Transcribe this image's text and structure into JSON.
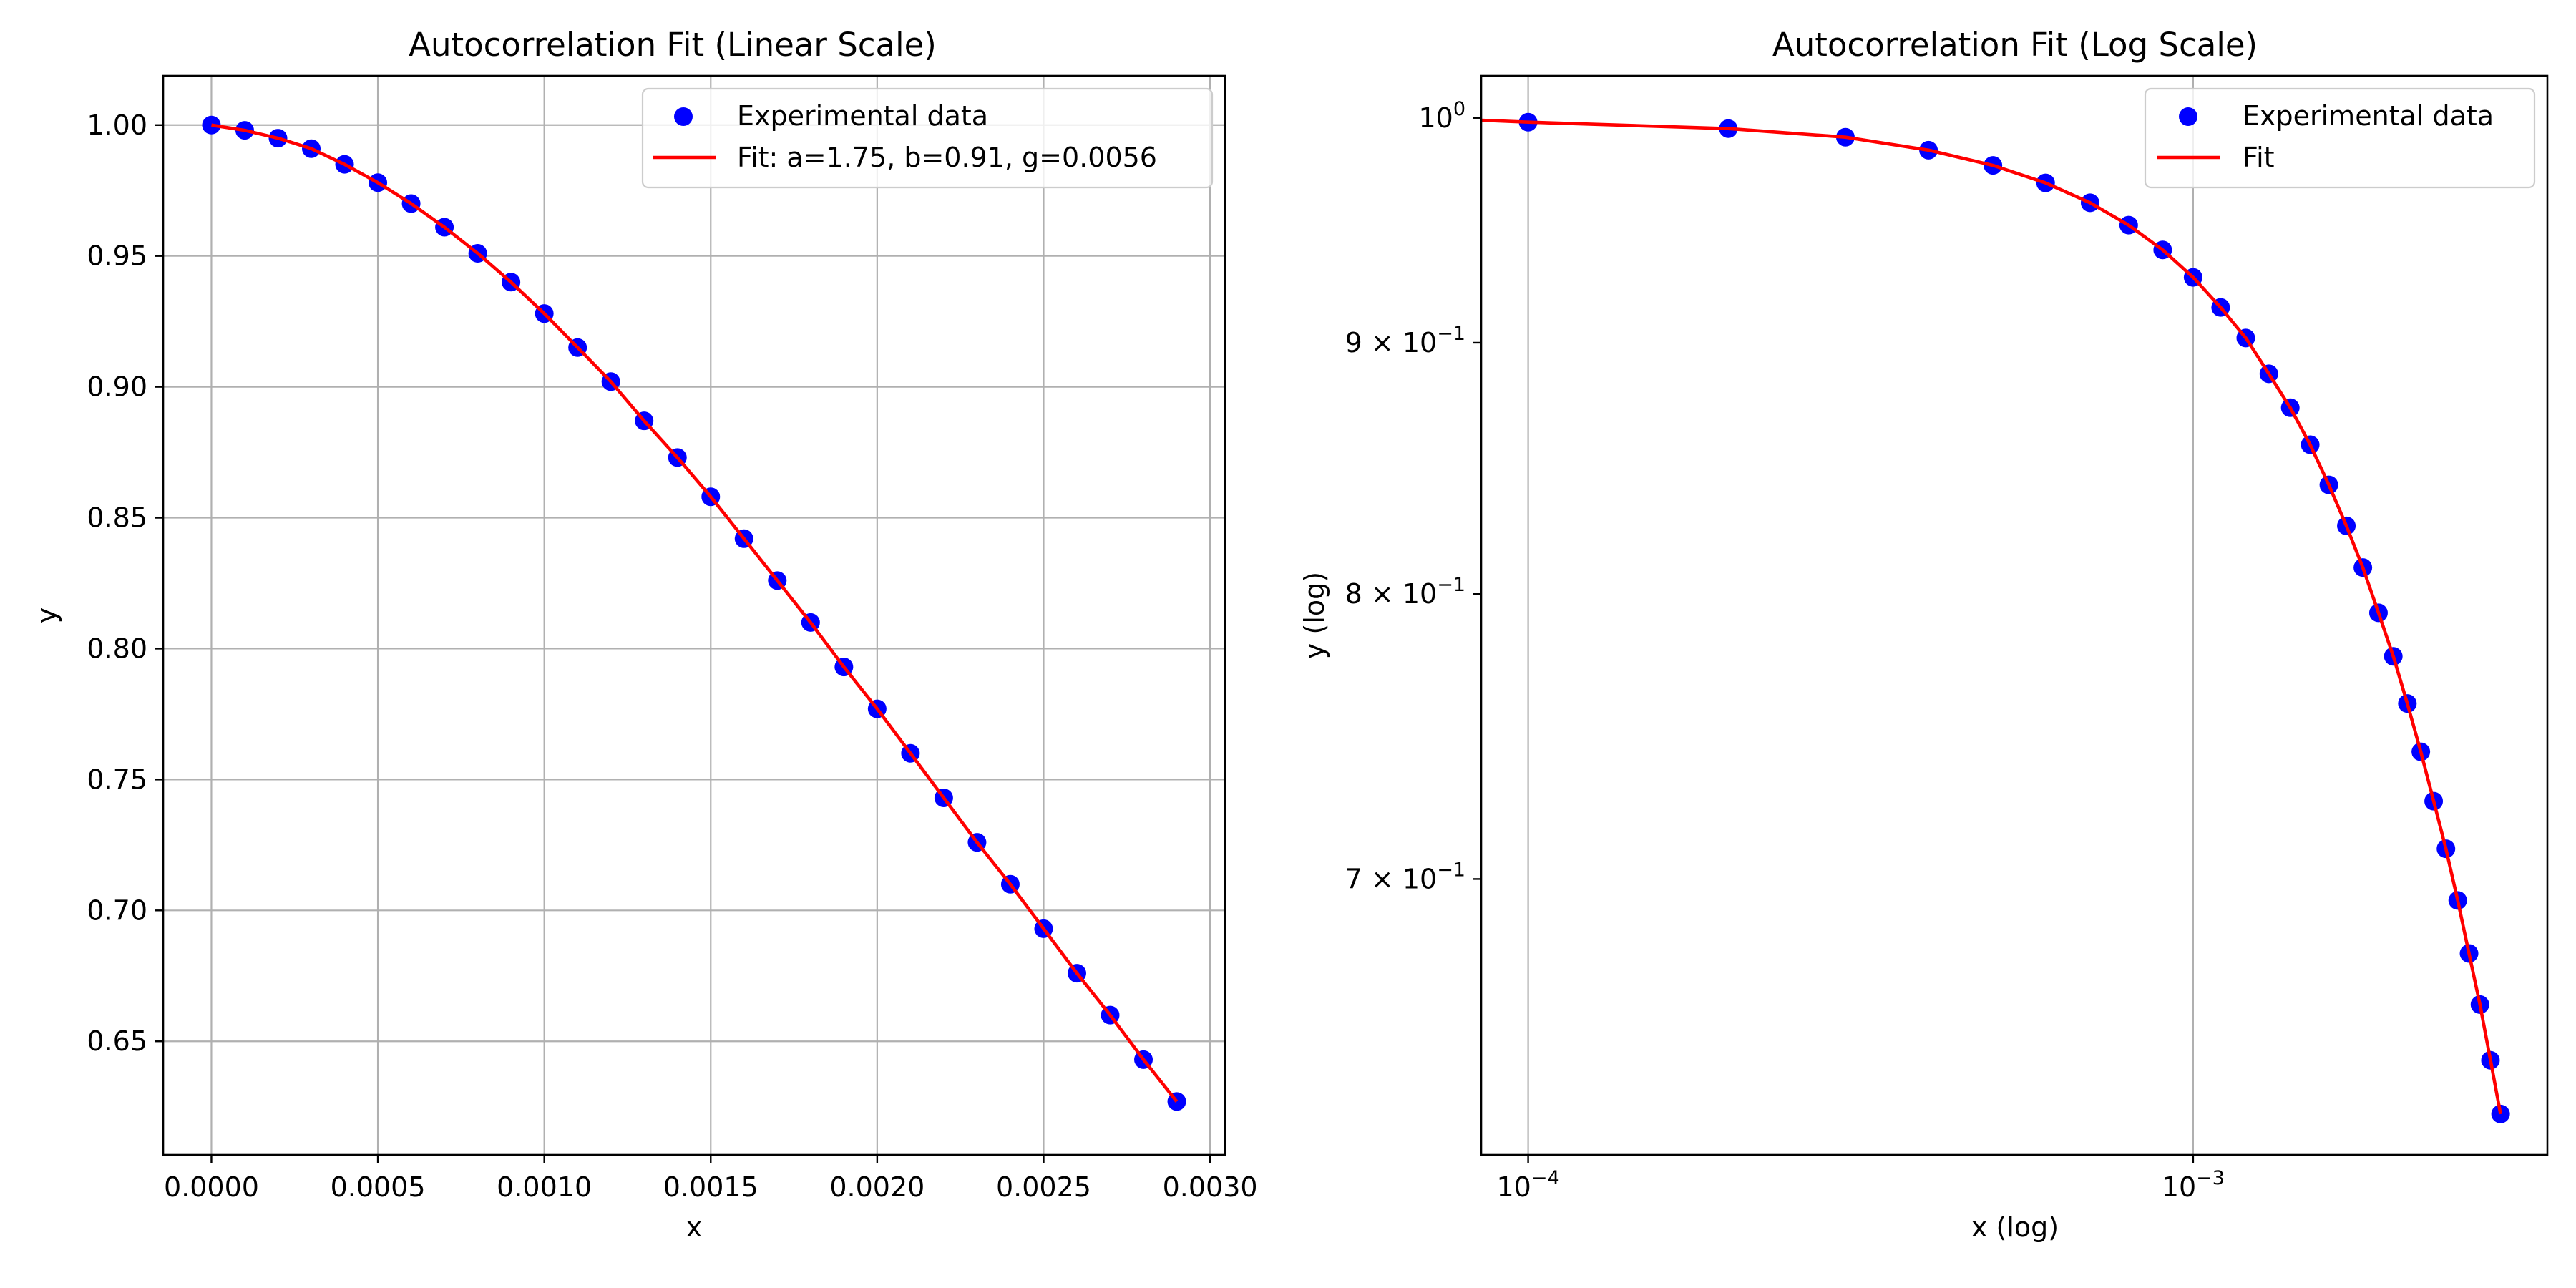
{
  "chart_data": [
    {
      "type": "scatter",
      "title": "Autocorrelation Fit (Linear Scale)",
      "xlabel": "x",
      "ylabel": "y",
      "xlim": [
        -0.000145,
        0.003045
      ],
      "ylim": [
        0.6066,
        1.0188
      ],
      "xscale": "linear",
      "yscale": "linear",
      "grid": true,
      "legend": "top-right",
      "x_ticks": [
        {
          "v": 0.0,
          "label": "0.0000"
        },
        {
          "v": 0.0005,
          "label": "0.0005"
        },
        {
          "v": 0.001,
          "label": "0.0010"
        },
        {
          "v": 0.0015,
          "label": "0.0015"
        },
        {
          "v": 0.002,
          "label": "0.0020"
        },
        {
          "v": 0.0025,
          "label": "0.0025"
        },
        {
          "v": 0.003,
          "label": "0.0030"
        }
      ],
      "y_ticks": [
        {
          "v": 0.65,
          "label": "0.65"
        },
        {
          "v": 0.7,
          "label": "0.70"
        },
        {
          "v": 0.75,
          "label": "0.75"
        },
        {
          "v": 0.8,
          "label": "0.80"
        },
        {
          "v": 0.85,
          "label": "0.85"
        },
        {
          "v": 0.9,
          "label": "0.90"
        },
        {
          "v": 0.95,
          "label": "0.95"
        },
        {
          "v": 1.0,
          "label": "1.00"
        }
      ],
      "series": [
        {
          "name": "Experimental data",
          "kind": "scatter",
          "color": "#0000ff",
          "x": [
            0.0,
            0.0001,
            0.0002,
            0.0003,
            0.0004,
            0.0005,
            0.0006,
            0.0007,
            0.0008,
            0.0009,
            0.001,
            0.0011,
            0.0012,
            0.0013,
            0.0014,
            0.0015,
            0.0016,
            0.0017,
            0.0018,
            0.0019,
            0.002,
            0.0021,
            0.0022,
            0.0023,
            0.0024,
            0.0025,
            0.0026,
            0.0027,
            0.0028,
            0.0029
          ],
          "y": [
            1.0,
            0.998,
            0.995,
            0.991,
            0.985,
            0.978,
            0.97,
            0.961,
            0.951,
            0.94,
            0.928,
            0.915,
            0.902,
            0.887,
            0.873,
            0.858,
            0.842,
            0.826,
            0.81,
            0.793,
            0.777,
            0.76,
            0.743,
            0.726,
            0.71,
            0.693,
            0.676,
            0.66,
            0.643,
            0.627
          ]
        },
        {
          "name": "Fit: a=1.75, b=0.91, g=0.0056",
          "kind": "line",
          "color": "#ff0000",
          "x": [
            0.0,
            0.0001,
            0.0002,
            0.0003,
            0.0004,
            0.0005,
            0.0006,
            0.0007,
            0.0008,
            0.0009,
            0.001,
            0.0011,
            0.0012,
            0.0013,
            0.0014,
            0.0015,
            0.0016,
            0.0017,
            0.0018,
            0.0019,
            0.002,
            0.0021,
            0.0022,
            0.0023,
            0.0024,
            0.0025,
            0.0026,
            0.0027,
            0.0028,
            0.0029
          ],
          "y": [
            1.0,
            0.998,
            0.995,
            0.991,
            0.985,
            0.978,
            0.97,
            0.961,
            0.951,
            0.94,
            0.928,
            0.915,
            0.902,
            0.887,
            0.873,
            0.858,
            0.842,
            0.826,
            0.81,
            0.793,
            0.777,
            0.76,
            0.743,
            0.726,
            0.71,
            0.693,
            0.676,
            0.66,
            0.643,
            0.627
          ]
        }
      ]
    },
    {
      "type": "scatter",
      "title": "Autocorrelation Fit (Log Scale)",
      "xlabel": "x (log)",
      "ylabel": "y (log)",
      "xlim": [
        8.5e-05,
        0.00341
      ],
      "ylim": [
        0.6151,
        1.0199
      ],
      "xscale": "log",
      "yscale": "log",
      "grid": true,
      "legend": "top-right",
      "x_ticks": [
        {
          "v": 0.0001,
          "base": "10",
          "exp": "−4"
        },
        {
          "v": 0.001,
          "base": "10",
          "exp": "−3"
        }
      ],
      "y_ticks": [
        {
          "v": 1.0,
          "base": "10",
          "exp": "0"
        },
        {
          "v": 0.9,
          "mant": "9 × ",
          "base": "10",
          "exp": "−1"
        },
        {
          "v": 0.8,
          "mant": "8 × ",
          "base": "10",
          "exp": "−1"
        },
        {
          "v": 0.7,
          "mant": "7 × ",
          "base": "10",
          "exp": "−1"
        }
      ],
      "series": [
        {
          "name": "Experimental data",
          "kind": "scatter",
          "color": "#0000ff",
          "x": [
            0.0001,
            0.0002,
            0.0003,
            0.0004,
            0.0005,
            0.0006,
            0.0007,
            0.0008,
            0.0009,
            0.001,
            0.0011,
            0.0012,
            0.0013,
            0.0014,
            0.0015,
            0.0016,
            0.0017,
            0.0018,
            0.0019,
            0.002,
            0.0021,
            0.0022,
            0.0023,
            0.0024,
            0.0025,
            0.0026,
            0.0027,
            0.0028,
            0.0029
          ],
          "y": [
            0.998,
            0.995,
            0.991,
            0.985,
            0.978,
            0.97,
            0.961,
            0.951,
            0.94,
            0.928,
            0.915,
            0.902,
            0.887,
            0.873,
            0.858,
            0.842,
            0.826,
            0.81,
            0.793,
            0.777,
            0.76,
            0.743,
            0.726,
            0.71,
            0.693,
            0.676,
            0.66,
            0.643,
            0.627
          ]
        },
        {
          "name": "Fit",
          "kind": "line",
          "color": "#ff0000",
          "x": [
            8.5e-05,
            0.0001,
            0.0002,
            0.0003,
            0.0004,
            0.0005,
            0.0006,
            0.0007,
            0.0008,
            0.0009,
            0.001,
            0.0011,
            0.0012,
            0.0013,
            0.0014,
            0.0015,
            0.0016,
            0.0017,
            0.0018,
            0.0019,
            0.002,
            0.0021,
            0.0022,
            0.0023,
            0.0024,
            0.0025,
            0.0026,
            0.0027,
            0.0028,
            0.0029
          ],
          "y": [
            0.9989,
            0.998,
            0.995,
            0.991,
            0.985,
            0.978,
            0.97,
            0.961,
            0.951,
            0.94,
            0.928,
            0.915,
            0.902,
            0.887,
            0.873,
            0.858,
            0.842,
            0.826,
            0.81,
            0.793,
            0.777,
            0.76,
            0.743,
            0.726,
            0.71,
            0.693,
            0.676,
            0.66,
            0.643,
            0.627
          ]
        }
      ]
    }
  ]
}
